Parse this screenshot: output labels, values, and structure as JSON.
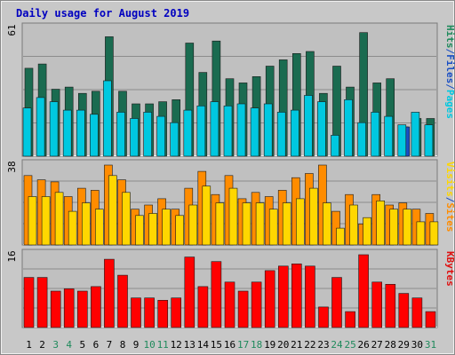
{
  "chart_data": {
    "type": "bar",
    "title": "Daily usage for August 2019",
    "categories": [
      "1",
      "2",
      "3",
      "4",
      "5",
      "6",
      "7",
      "8",
      "9",
      "10",
      "11",
      "12",
      "13",
      "14",
      "15",
      "16",
      "17",
      "18",
      "19",
      "20",
      "21",
      "22",
      "23",
      "24",
      "25",
      "26",
      "27",
      "28",
      "29",
      "30",
      "31"
    ],
    "weekend_days": [
      3,
      4,
      10,
      11,
      17,
      18,
      24,
      25,
      31
    ],
    "panels": [
      {
        "id": "hits",
        "max_label": "61",
        "ymax": 61,
        "right_labels": [
          {
            "text": "Pages",
            "color": "#00c8e0"
          },
          {
            "text": "/",
            "color": "#1a4fc4"
          },
          {
            "text": "Files",
            "color": "#1a4fc4"
          },
          {
            "text": "/",
            "color": "#1a4fc4"
          },
          {
            "text": "Hits",
            "color": "#1f8a5c"
          }
        ],
        "series": [
          {
            "name": "Hits",
            "color": "#1a6b50",
            "values": [
              42,
              44,
              32,
              33,
              30,
              31,
              57,
              31,
              25,
              25,
              26,
              27,
              54,
              40,
              55,
              37,
              35,
              38,
              43,
              46,
              49,
              50,
              30,
              43,
              33,
              59,
              35,
              37,
              14,
              18,
              18
            ]
          },
          {
            "name": "Files",
            "color": "#1a4fc4",
            "values": [
              0,
              0,
              0,
              0,
              0,
              0,
              0,
              0,
              0,
              0,
              0,
              0,
              0,
              0,
              0,
              0,
              0,
              0,
              0,
              0,
              0,
              0,
              0,
              0,
              0,
              0,
              0,
              0,
              14,
              0,
              0
            ]
          },
          {
            "name": "Pages",
            "color": "#00c8e0",
            "values": [
              23,
              28,
              26,
              22,
              22,
              20,
              36,
              21,
              18,
              21,
              19,
              16,
              22,
              24,
              26,
              24,
              25,
              23,
              25,
              21,
              22,
              29,
              26,
              10,
              27,
              16,
              21,
              19,
              15,
              21,
              15
            ]
          }
        ]
      },
      {
        "id": "visits",
        "max_label": "38",
        "ymax": 38,
        "right_labels": [
          {
            "text": "Sites",
            "color": "#ff8c00"
          },
          {
            "text": "/",
            "color": "#1a4fc4"
          },
          {
            "text": "Visits",
            "color": "#ffd700"
          }
        ],
        "series": [
          {
            "name": "Visits",
            "color": "#ff8c00",
            "values": [
              33,
              31,
              30,
              23,
              27,
              26,
              38,
              31,
              17,
              19,
              22,
              17,
              27,
              35,
              24,
              33,
              22,
              25,
              23,
              26,
              32,
              34,
              38,
              16,
              24,
              10,
              24,
              19,
              20,
              17,
              15
            ]
          },
          {
            "name": "Sites",
            "color": "#ffd700",
            "values": [
              23,
              23,
              25,
              16,
              20,
              17,
              33,
              25,
              14,
              15,
              17,
              14,
              19,
              28,
              20,
              27,
              20,
              20,
              17,
              20,
              22,
              27,
              20,
              8,
              19,
              13,
              21,
              17,
              17,
              11,
              11
            ]
          }
        ]
      },
      {
        "id": "kbytes",
        "max_label": "16",
        "ymax": 16,
        "right_labels": [
          {
            "text": "KBytes",
            "color": "#e01010"
          }
        ],
        "series": [
          {
            "name": "KBytes",
            "color": "#ff0000",
            "values": [
              11,
              11,
              8,
              8.5,
              8,
              9,
              15,
              11.5,
              6.5,
              6.5,
              6,
              6.5,
              15.5,
              9,
              14.5,
              10,
              8,
              10,
              12.5,
              13.5,
              14,
              13.5,
              4.5,
              11,
              3.5,
              16,
              10,
              9.5,
              7.5,
              6.5,
              3.5
            ]
          }
        ]
      }
    ],
    "colors": {
      "plot_bg": "#c0c0c0",
      "title": "#0000c0",
      "axis_label": "#000000",
      "weekday_label": "#000000",
      "weekend_label": "#1f8a5c"
    }
  }
}
